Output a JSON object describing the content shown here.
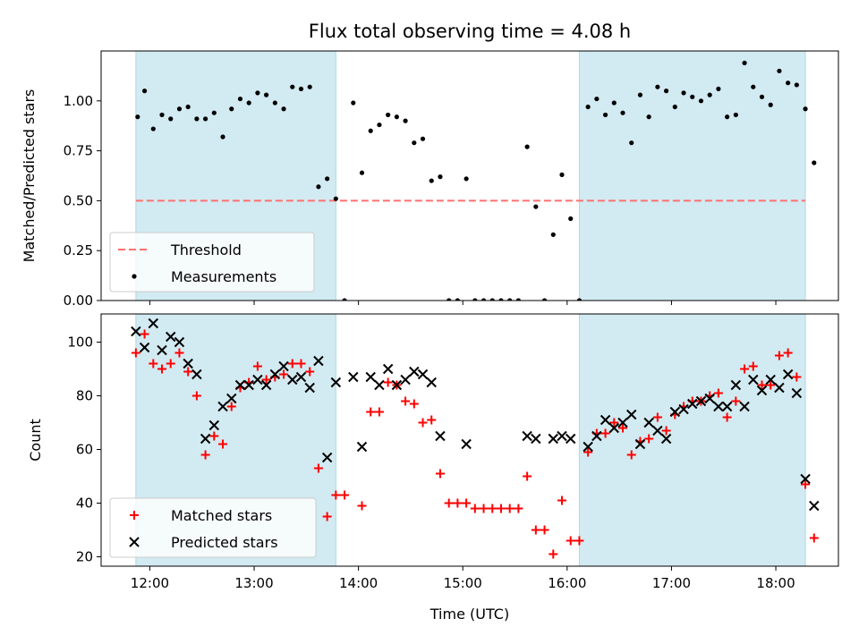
{
  "chart_data": {
    "title": "Flux total observing time = 4.08 h",
    "xlabel": "Time (UTC)",
    "x_ticks": [
      "12:00",
      "13:00",
      "14:00",
      "15:00",
      "16:00",
      "17:00",
      "18:00"
    ],
    "shaded_intervals": [
      [
        "11:52",
        "13:47"
      ],
      [
        "16:07",
        "18:17"
      ]
    ],
    "shade_color": "#add8e6",
    "panels": [
      {
        "type": "scatter",
        "ylabel": "Matched/Predicted stars",
        "ylim": [
          0,
          1.25
        ],
        "y_ticks": [
          "0.00",
          "0.25",
          "0.50",
          "0.75",
          "1.00"
        ],
        "threshold": {
          "name": "Threshold",
          "value": 0.5,
          "color": "#ff7070"
        },
        "legend": [
          "Threshold",
          "Measurements"
        ],
        "legend_location": "lower-left",
        "series": [
          {
            "name": "Measurements",
            "color": "#000000",
            "points": [
              [
                "11:53",
                0.92
              ],
              [
                "11:57",
                1.05
              ],
              [
                "12:02",
                0.86
              ],
              [
                "12:07",
                0.93
              ],
              [
                "12:12",
                0.91
              ],
              [
                "12:17",
                0.96
              ],
              [
                "12:22",
                0.97
              ],
              [
                "12:27",
                0.91
              ],
              [
                "12:32",
                0.91
              ],
              [
                "12:37",
                0.94
              ],
              [
                "12:42",
                0.82
              ],
              [
                "12:47",
                0.96
              ],
              [
                "12:52",
                1.01
              ],
              [
                "12:57",
                0.99
              ],
              [
                "13:02",
                1.04
              ],
              [
                "13:07",
                1.03
              ],
              [
                "13:12",
                0.99
              ],
              [
                "13:17",
                0.96
              ],
              [
                "13:22",
                1.07
              ],
              [
                "13:27",
                1.06
              ],
              [
                "13:32",
                1.07
              ],
              [
                "13:37",
                0.57
              ],
              [
                "13:42",
                0.61
              ],
              [
                "13:47",
                0.51
              ],
              [
                "13:52",
                0.0
              ],
              [
                "13:57",
                0.99
              ],
              [
                "14:02",
                0.64
              ],
              [
                "14:07",
                0.85
              ],
              [
                "14:12",
                0.88
              ],
              [
                "14:17",
                0.93
              ],
              [
                "14:22",
                0.92
              ],
              [
                "14:27",
                0.9
              ],
              [
                "14:32",
                0.79
              ],
              [
                "14:37",
                0.81
              ],
              [
                "14:42",
                0.6
              ],
              [
                "14:47",
                0.62
              ],
              [
                "14:52",
                0.0
              ],
              [
                "14:57",
                0.0
              ],
              [
                "15:02",
                0.61
              ],
              [
                "15:07",
                0.0
              ],
              [
                "15:12",
                0.0
              ],
              [
                "15:17",
                0.0
              ],
              [
                "15:22",
                0.0
              ],
              [
                "15:27",
                0.0
              ],
              [
                "15:32",
                0.0
              ],
              [
                "15:37",
                0.77
              ],
              [
                "15:42",
                0.47
              ],
              [
                "15:47",
                0.0
              ],
              [
                "15:52",
                0.33
              ],
              [
                "15:57",
                0.63
              ],
              [
                "16:02",
                0.41
              ],
              [
                "16:07",
                0.0
              ],
              [
                "16:12",
                0.97
              ],
              [
                "16:17",
                1.01
              ],
              [
                "16:22",
                0.93
              ],
              [
                "16:27",
                0.99
              ],
              [
                "16:32",
                0.94
              ],
              [
                "16:37",
                0.79
              ],
              [
                "16:42",
                1.03
              ],
              [
                "16:47",
                0.92
              ],
              [
                "16:52",
                1.07
              ],
              [
                "16:57",
                1.05
              ],
              [
                "17:02",
                0.97
              ],
              [
                "17:07",
                1.04
              ],
              [
                "17:12",
                1.02
              ],
              [
                "17:17",
                1.0
              ],
              [
                "17:22",
                1.03
              ],
              [
                "17:27",
                1.06
              ],
              [
                "17:32",
                0.92
              ],
              [
                "17:37",
                0.93
              ],
              [
                "17:42",
                1.19
              ],
              [
                "17:47",
                1.07
              ],
              [
                "17:52",
                1.02
              ],
              [
                "17:57",
                0.98
              ],
              [
                "18:02",
                1.15
              ],
              [
                "18:07",
                1.09
              ],
              [
                "18:12",
                1.08
              ],
              [
                "18:17",
                0.96
              ],
              [
                "18:22",
                0.69
              ]
            ]
          }
        ]
      },
      {
        "type": "scatter",
        "ylabel": "Count",
        "ylim": [
          16.5,
          110.5
        ],
        "y_ticks": [
          "20",
          "40",
          "60",
          "80",
          "100"
        ],
        "legend": [
          "Matched stars",
          "Predicted stars"
        ],
        "legend_location": "lower-left",
        "series": [
          {
            "name": "Matched stars",
            "marker": "plus",
            "color": "#ff0000",
            "points": [
              [
                "11:52",
                96
              ],
              [
                "11:57",
                103
              ],
              [
                "12:02",
                92
              ],
              [
                "12:07",
                90
              ],
              [
                "12:12",
                92
              ],
              [
                "12:17",
                96
              ],
              [
                "12:22",
                89
              ],
              [
                "12:27",
                80
              ],
              [
                "12:32",
                58
              ],
              [
                "12:37",
                65
              ],
              [
                "12:42",
                62
              ],
              [
                "12:47",
                76
              ],
              [
                "12:52",
                83
              ],
              [
                "12:57",
                85
              ],
              [
                "13:02",
                91
              ],
              [
                "13:07",
                86
              ],
              [
                "13:12",
                87
              ],
              [
                "13:17",
                88
              ],
              [
                "13:22",
                92
              ],
              [
                "13:27",
                92
              ],
              [
                "13:32",
                89
              ],
              [
                "13:37",
                53
              ],
              [
                "13:42",
                35
              ],
              [
                "13:47",
                43
              ],
              [
                "13:52",
                43
              ],
              [
                "14:02",
                39
              ],
              [
                "14:07",
                74
              ],
              [
                "14:12",
                74
              ],
              [
                "14:17",
                85
              ],
              [
                "14:22",
                84
              ],
              [
                "14:27",
                78
              ],
              [
                "14:32",
                77
              ],
              [
                "14:37",
                70
              ],
              [
                "14:42",
                71
              ],
              [
                "14:47",
                51
              ],
              [
                "14:52",
                40
              ],
              [
                "14:57",
                40
              ],
              [
                "15:02",
                40
              ],
              [
                "15:07",
                38
              ],
              [
                "15:12",
                38
              ],
              [
                "15:17",
                38
              ],
              [
                "15:22",
                38
              ],
              [
                "15:27",
                38
              ],
              [
                "15:32",
                38
              ],
              [
                "15:37",
                50
              ],
              [
                "15:42",
                30
              ],
              [
                "15:47",
                30
              ],
              [
                "15:52",
                21
              ],
              [
                "15:57",
                41
              ],
              [
                "16:02",
                26
              ],
              [
                "16:07",
                26
              ],
              [
                "16:12",
                59
              ],
              [
                "16:17",
                66
              ],
              [
                "16:22",
                66
              ],
              [
                "16:27",
                70
              ],
              [
                "16:32",
                68
              ],
              [
                "16:37",
                58
              ],
              [
                "16:42",
                63
              ],
              [
                "16:47",
                64
              ],
              [
                "16:52",
                72
              ],
              [
                "16:57",
                67
              ],
              [
                "17:02",
                73
              ],
              [
                "17:07",
                76
              ],
              [
                "17:12",
                78
              ],
              [
                "17:17",
                78
              ],
              [
                "17:22",
                80
              ],
              [
                "17:27",
                81
              ],
              [
                "17:32",
                72
              ],
              [
                "17:37",
                78
              ],
              [
                "17:42",
                90
              ],
              [
                "17:47",
                91
              ],
              [
                "17:52",
                84
              ],
              [
                "17:57",
                84
              ],
              [
                "18:02",
                95
              ],
              [
                "18:07",
                96
              ],
              [
                "18:12",
                87
              ],
              [
                "18:17",
                47
              ],
              [
                "18:22",
                27
              ]
            ]
          },
          {
            "name": "Predicted stars",
            "marker": "x",
            "color": "#000000",
            "points": [
              [
                "11:52",
                104
              ],
              [
                "11:57",
                98
              ],
              [
                "12:02",
                107
              ],
              [
                "12:07",
                97
              ],
              [
                "12:12",
                102
              ],
              [
                "12:17",
                100
              ],
              [
                "12:22",
                92
              ],
              [
                "12:27",
                88
              ],
              [
                "12:32",
                64
              ],
              [
                "12:37",
                69
              ],
              [
                "12:42",
                76
              ],
              [
                "12:47",
                79
              ],
              [
                "12:52",
                84
              ],
              [
                "12:57",
                84
              ],
              [
                "13:02",
                86
              ],
              [
                "13:07",
                84
              ],
              [
                "13:12",
                88
              ],
              [
                "13:17",
                91
              ],
              [
                "13:22",
                86
              ],
              [
                "13:27",
                87
              ],
              [
                "13:32",
                83
              ],
              [
                "13:37",
                93
              ],
              [
                "13:42",
                57
              ],
              [
                "13:47",
                85
              ],
              [
                "13:57",
                87
              ],
              [
                "14:02",
                61
              ],
              [
                "14:07",
                87
              ],
              [
                "14:12",
                84
              ],
              [
                "14:17",
                90
              ],
              [
                "14:22",
                84
              ],
              [
                "14:27",
                86
              ],
              [
                "14:32",
                89
              ],
              [
                "14:37",
                88
              ],
              [
                "14:42",
                85
              ],
              [
                "14:47",
                65
              ],
              [
                "15:02",
                62
              ],
              [
                "15:37",
                65
              ],
              [
                "15:42",
                64
              ],
              [
                "15:52",
                64
              ],
              [
                "15:57",
                65
              ],
              [
                "16:02",
                64
              ],
              [
                "16:12",
                61
              ],
              [
                "16:17",
                65
              ],
              [
                "16:22",
                71
              ],
              [
                "16:27",
                68
              ],
              [
                "16:32",
                70
              ],
              [
                "16:37",
                73
              ],
              [
                "16:42",
                62
              ],
              [
                "16:47",
                70
              ],
              [
                "16:52",
                67
              ],
              [
                "16:57",
                64
              ],
              [
                "17:02",
                74
              ],
              [
                "17:07",
                75
              ],
              [
                "17:12",
                77
              ],
              [
                "17:17",
                78
              ],
              [
                "17:22",
                79
              ],
              [
                "17:27",
                76
              ],
              [
                "17:32",
                76
              ],
              [
                "17:37",
                84
              ],
              [
                "17:42",
                76
              ],
              [
                "17:47",
                86
              ],
              [
                "17:52",
                82
              ],
              [
                "17:57",
                86
              ],
              [
                "18:02",
                83
              ],
              [
                "18:07",
                88
              ],
              [
                "18:12",
                81
              ],
              [
                "18:17",
                49
              ],
              [
                "18:22",
                39
              ]
            ]
          }
        ]
      }
    ]
  }
}
